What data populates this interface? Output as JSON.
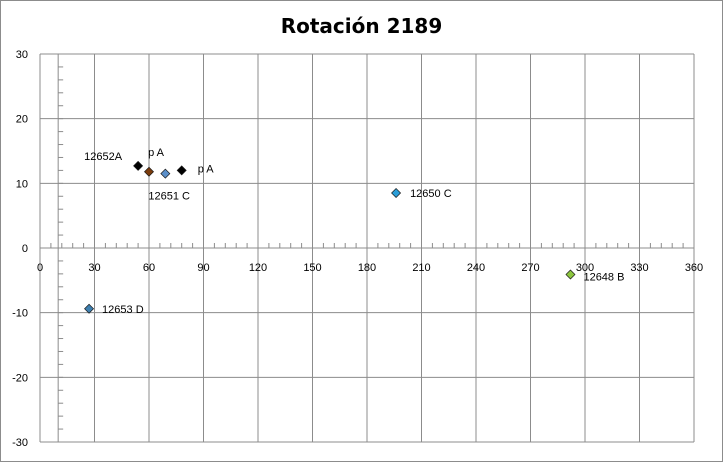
{
  "chart_data": {
    "type": "scatter",
    "title": "Rotación 2189",
    "xlabel": "",
    "ylabel": "",
    "xlim": [
      0,
      360
    ],
    "ylim": [
      -30,
      30
    ],
    "x_ticks": [
      0,
      30,
      60,
      90,
      120,
      150,
      180,
      210,
      240,
      270,
      300,
      330,
      360
    ],
    "y_ticks": [
      30,
      20,
      10,
      0,
      -10,
      -20,
      -30
    ],
    "grid": true,
    "legend": "none",
    "points": [
      {
        "x": 54,
        "y": 12.7,
        "label": "12652A",
        "color": "#000000"
      },
      {
        "x": 60,
        "y": 11.8,
        "label": "",
        "color": "#7a3b0c"
      },
      {
        "x": 69,
        "y": 11.5,
        "label": "12651 C",
        "color": "#5b8fc9"
      },
      {
        "x": 78,
        "y": 12.0,
        "label": "p A",
        "color": "#000000"
      },
      {
        "x": 196,
        "y": 8.5,
        "label": "12650 C",
        "color": "#2b9ed8"
      },
      {
        "x": 292,
        "y": -4.1,
        "label": "12648 B",
        "color": "#8dc63f"
      },
      {
        "x": 27,
        "y": -9.4,
        "label": "12653 D",
        "color": "#3d7fb0"
      }
    ],
    "extra_labels": [
      "p A"
    ]
  }
}
